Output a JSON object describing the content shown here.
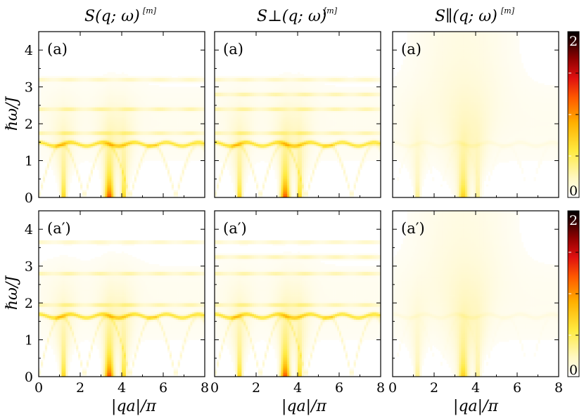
{
  "chart_data": {
    "type": "heatmap",
    "column_titles": [
      {
        "main": "S(q; ω)",
        "sup": "[m]"
      },
      {
        "main": "S⊥(q; ω)",
        "sup": "[m]"
      },
      {
        "main": "S∥(q; ω)",
        "sup": "[m]"
      }
    ],
    "xlabel": "|qa|/π",
    "ylabel": "ℏω/J",
    "xlim": [
      0,
      8
    ],
    "ylim": [
      0,
      4.5
    ],
    "xticks": [
      "0",
      "2",
      "4",
      "6",
      "8"
    ],
    "yticks": [
      "0",
      "1",
      "2",
      "3",
      "4"
    ],
    "colorbar": {
      "range": [
        0,
        2
      ],
      "tick_labels": [
        "0",
        "2"
      ],
      "colors": [
        "#ffffff",
        "#fff7c0",
        "#ffea40",
        "#ffb000",
        "#ff5a00",
        "#e01010",
        "#8c0000",
        "#300000",
        "#000000"
      ]
    },
    "panels": [
      {
        "row": 0,
        "col": 0,
        "label": "(a)",
        "component": "total",
        "bands": [
          1.45,
          1.75,
          2.4,
          3.2
        ],
        "peaks_x": [
          1.2,
          3.4,
          4.1
        ]
      },
      {
        "row": 0,
        "col": 1,
        "label": "(a)",
        "component": "perpendicular",
        "bands": [
          1.45,
          1.75,
          2.4,
          2.8,
          3.2
        ],
        "peaks_x": [
          1.2,
          3.4,
          4.1
        ]
      },
      {
        "row": 0,
        "col": 2,
        "label": "(a)",
        "component": "parallel",
        "bands": [
          1.45
        ],
        "peaks_x": [
          1.2,
          3.4,
          4.1
        ]
      },
      {
        "row": 1,
        "col": 0,
        "label": "(a′)",
        "component": "total",
        "bands": [
          1.65,
          1.95,
          2.8,
          3.65
        ],
        "peaks_x": [
          1.2,
          3.4,
          4.1
        ]
      },
      {
        "row": 1,
        "col": 1,
        "label": "(a′)",
        "component": "perpendicular",
        "bands": [
          1.65,
          1.95,
          2.8,
          3.25,
          3.65
        ],
        "peaks_x": [
          1.2,
          3.4,
          4.1
        ]
      },
      {
        "row": 1,
        "col": 2,
        "label": "(a′)",
        "component": "parallel",
        "bands": [
          1.65
        ],
        "peaks_x": [
          1.2,
          3.4,
          4.1
        ]
      }
    ]
  }
}
